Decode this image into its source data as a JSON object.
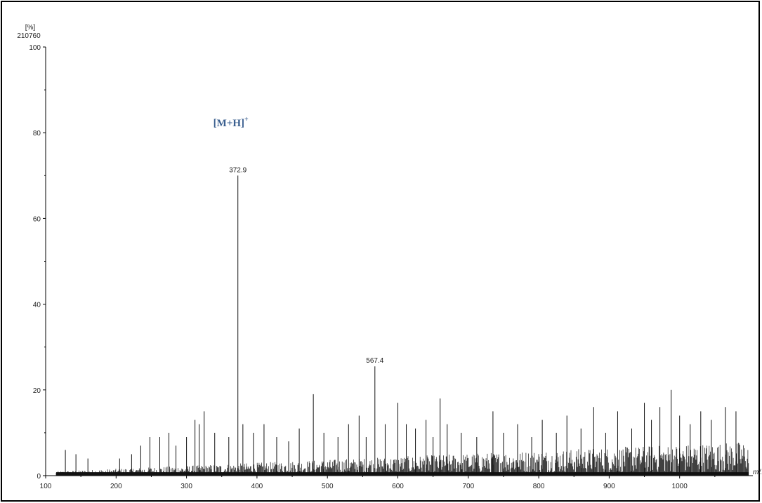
{
  "chart_data": {
    "type": "bar",
    "title": "",
    "ylabel_unit": "[%]",
    "ylabel_base": "210760",
    "xlabel": "m/z",
    "xlim": [
      100,
      1100
    ],
    "ylim": [
      0,
      100
    ],
    "x_ticks": [
      100,
      200,
      300,
      400,
      500,
      600,
      700,
      800,
      900,
      1000
    ],
    "y_ticks": [
      0,
      20,
      40,
      60,
      80,
      100
    ],
    "grid": false,
    "annotation": {
      "text": "[M+H]",
      "superscript": "+",
      "color": "#3a5f8f",
      "x": 372.9,
      "y": 82
    },
    "labeled_peaks": [
      {
        "mz": 372.9,
        "intensity": 70,
        "label": "372.9"
      },
      {
        "mz": 567.4,
        "intensity": 25.5,
        "label": "567.4"
      }
    ],
    "series": [
      {
        "mz": [
          128,
          143,
          160,
          205,
          222,
          235,
          248,
          262,
          275,
          285,
          300,
          312,
          318,
          325,
          340,
          360,
          380,
          395,
          410,
          428,
          445,
          460,
          480,
          495,
          515,
          530,
          545,
          555,
          582,
          600,
          612,
          625,
          640,
          650,
          660,
          670,
          690,
          712,
          735,
          750,
          770,
          790,
          805,
          825,
          840,
          860,
          878,
          895,
          912,
          932,
          950,
          960,
          972,
          988,
          1000,
          1015,
          1030,
          1045,
          1065,
          1080
        ],
        "intensity": [
          6,
          5,
          4,
          4,
          5,
          7,
          9,
          9,
          10,
          7,
          9,
          13,
          12,
          15,
          10,
          9,
          12,
          10,
          12,
          9,
          8,
          11,
          19,
          10,
          9,
          12,
          14,
          9,
          12,
          17,
          12,
          11,
          13,
          9,
          18,
          12,
          10,
          9,
          15,
          10,
          12,
          9,
          13,
          10,
          14,
          11,
          16,
          10,
          15,
          11,
          17,
          13,
          16,
          20,
          14,
          12,
          15,
          13,
          16,
          15
        ]
      }
    ]
  }
}
